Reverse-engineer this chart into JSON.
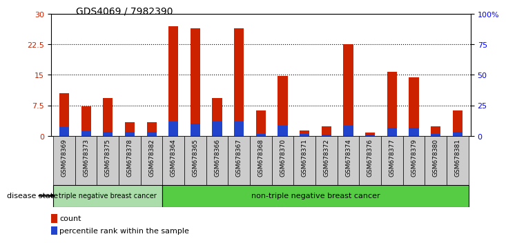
{
  "title": "GDS4069 / 7982390",
  "samples": [
    "GSM678369",
    "GSM678373",
    "GSM678375",
    "GSM678378",
    "GSM678382",
    "GSM678364",
    "GSM678365",
    "GSM678366",
    "GSM678367",
    "GSM678368",
    "GSM678370",
    "GSM678371",
    "GSM678372",
    "GSM678374",
    "GSM678376",
    "GSM678377",
    "GSM678379",
    "GSM678380",
    "GSM678381"
  ],
  "count_values": [
    10.5,
    7.3,
    9.3,
    3.3,
    3.3,
    27.0,
    26.5,
    9.3,
    26.5,
    6.3,
    14.8,
    1.3,
    2.3,
    22.5,
    0.8,
    15.8,
    14.3,
    2.3,
    6.3
  ],
  "percentile_values": [
    7.0,
    4.0,
    3.5,
    3.5,
    3.5,
    11.7,
    10.0,
    11.7,
    11.7,
    1.7,
    8.3,
    1.7,
    1.0,
    8.3,
    1.0,
    6.7,
    6.7,
    1.7,
    3.3
  ],
  "ylim_left": [
    0,
    30
  ],
  "ylim_right": [
    0,
    100
  ],
  "yticks_left": [
    0,
    7.5,
    15,
    22.5,
    30
  ],
  "ytick_labels_left": [
    "0",
    "7.5",
    "15",
    "22.5",
    "30"
  ],
  "yticks_right": [
    0,
    25,
    50,
    75,
    100
  ],
  "ytick_labels_right": [
    "0",
    "25",
    "50",
    "75",
    "100%"
  ],
  "gridlines": [
    7.5,
    15,
    22.5
  ],
  "bar_color_red": "#cc2200",
  "bar_color_blue": "#2244cc",
  "group1_label": "triple negative breast cancer",
  "group2_label": "non-triple negative breast cancer",
  "group1_count": 5,
  "group2_count": 14,
  "disease_state_label": "disease state",
  "legend_count": "count",
  "legend_percentile": "percentile rank within the sample",
  "bar_width": 0.45,
  "background_color": "#ffffff",
  "xtick_bg_color": "#cccccc",
  "group1_band_color": "#aaddaa",
  "group2_band_color": "#55cc44",
  "separator_color": "#000000"
}
